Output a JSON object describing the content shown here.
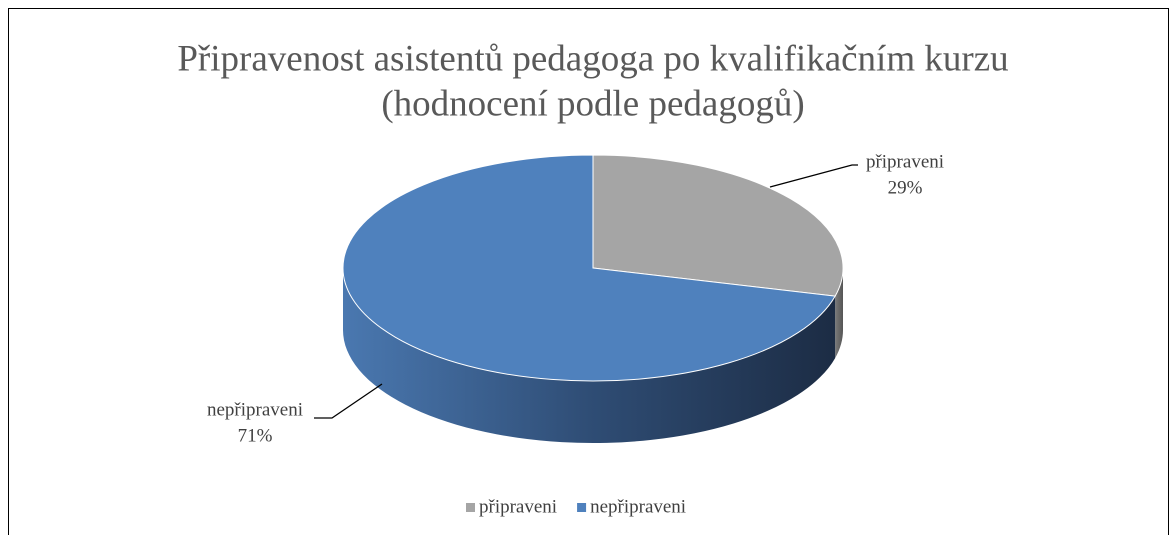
{
  "chart_data": {
    "type": "pie3d",
    "title": [
      "Připravenost asistentů pedagoga po kvalifikačním kurzu",
      "(hodnocení podle pedagogů)"
    ],
    "categories": [
      "připraveni",
      "nepřipraveni"
    ],
    "values": [
      29,
      71
    ],
    "value_labels": [
      "29%",
      "71%"
    ],
    "colors": [
      "#a5a5a5",
      "#4f81bd"
    ],
    "legend": "bottom"
  }
}
